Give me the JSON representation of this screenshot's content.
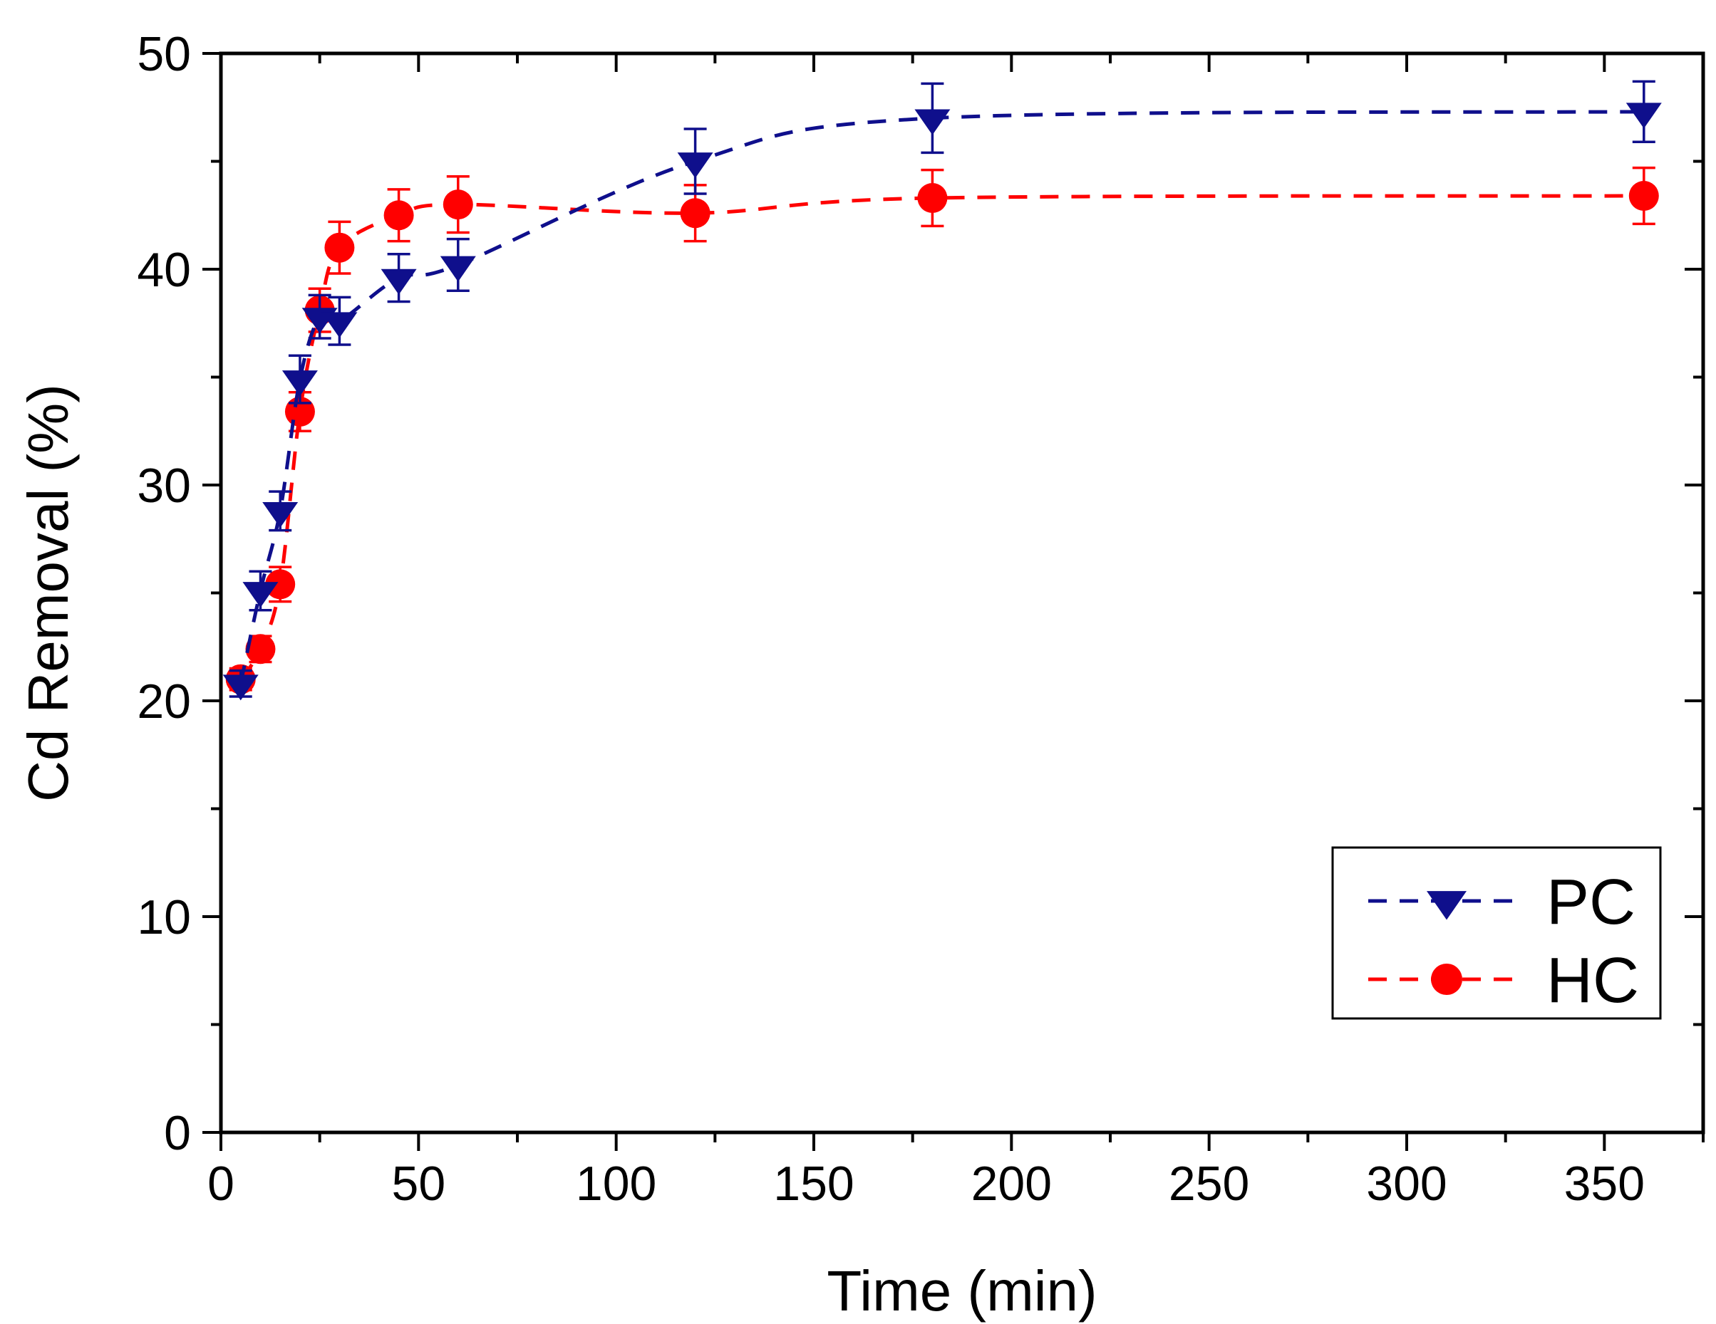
{
  "chart_data": {
    "type": "line",
    "title": "",
    "xlabel": "Time (min)",
    "ylabel": "Cd Removal (%)",
    "xlim": [
      0,
      375
    ],
    "ylim": [
      0,
      50
    ],
    "xticks": [
      0,
      50,
      100,
      150,
      200,
      250,
      300,
      350
    ],
    "yticks": [
      0,
      10,
      20,
      30,
      40,
      50
    ],
    "grid": false,
    "legend_position": "bottom-right",
    "series": [
      {
        "name": "PC",
        "marker": "triangle-down",
        "line": "dashed",
        "color": "#0f0f8c",
        "x": [
          5,
          10,
          15,
          20,
          25,
          30,
          45,
          60,
          120,
          180,
          360
        ],
        "y": [
          20.8,
          25.1,
          28.8,
          34.9,
          37.8,
          37.6,
          39.6,
          40.2,
          45.0,
          47.0,
          47.3
        ],
        "err": [
          0.6,
          0.9,
          0.9,
          1.1,
          1.0,
          1.1,
          1.1,
          1.2,
          1.5,
          1.6,
          1.4
        ]
      },
      {
        "name": "HC",
        "marker": "circle",
        "line": "dashed",
        "color": "#ff0000",
        "x": [
          5,
          10,
          15,
          20,
          25,
          30,
          45,
          60,
          120,
          180,
          360
        ],
        "y": [
          21.0,
          22.4,
          25.4,
          33.4,
          38.1,
          41.0,
          42.5,
          43.0,
          42.6,
          43.3,
          43.4
        ],
        "err": [
          0.5,
          0.6,
          0.8,
          0.9,
          1.0,
          1.2,
          1.2,
          1.3,
          1.3,
          1.3,
          1.3
        ]
      }
    ]
  }
}
